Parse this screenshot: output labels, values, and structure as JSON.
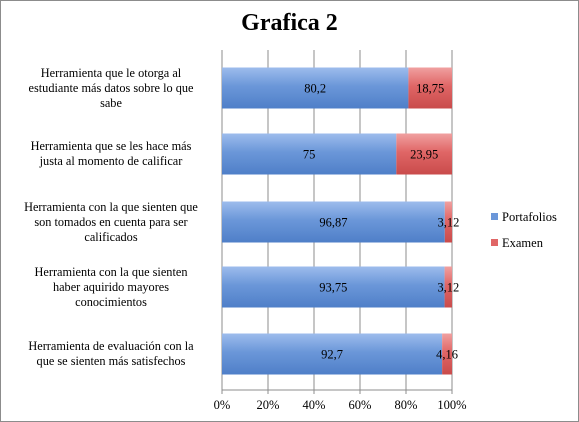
{
  "chart_data": {
    "type": "bar",
    "orientation": "horizontal",
    "stacked": "percent",
    "title": "Grafica 2",
    "categories": [
      "Herramienta que le otorga al estudiante más datos sobre lo que sabe",
      "Herramienta que se les hace más justa al momento de calificar",
      "Herramienta con la que sienten que son tomados en cuenta para ser calificados",
      "Herramienta con la que sienten haber aquirido mayores conocimientos",
      "Herramienta de evaluación con la que se sienten más satisfechos"
    ],
    "category_lines": [
      [
        "Herramienta que le otorga al",
        "estudiante más datos sobre lo que",
        "sabe"
      ],
      [
        "Herramienta que se les hace más",
        "justa al momento de calificar"
      ],
      [
        "Herramienta con la que sienten que",
        "son tomados en cuenta para ser",
        "calificados"
      ],
      [
        "Herramienta con la que sienten",
        "haber aquirido mayores",
        "conocimientos"
      ],
      [
        "Herramienta de evaluación con la",
        "que se sienten más satisfechos"
      ]
    ],
    "series": [
      {
        "name": "Portafolios",
        "values": [
          80.2,
          75,
          96.87,
          93.75,
          92.7
        ],
        "labels": [
          "80,2",
          "75",
          "96,87",
          "93,75",
          "92,7"
        ],
        "color": "#6b97d9"
      },
      {
        "name": "Examen",
        "values": [
          18.75,
          23.95,
          3.12,
          3.12,
          4.16
        ],
        "labels": [
          "18,75",
          "23,95",
          "3,12",
          "3,12",
          "4,16"
        ],
        "color": "#e06666"
      }
    ],
    "x_ticks": [
      "0%",
      "20%",
      "40%",
      "60%",
      "80%",
      "100%"
    ],
    "xlim": [
      0,
      100
    ],
    "grid": true,
    "legend_position": "right"
  }
}
